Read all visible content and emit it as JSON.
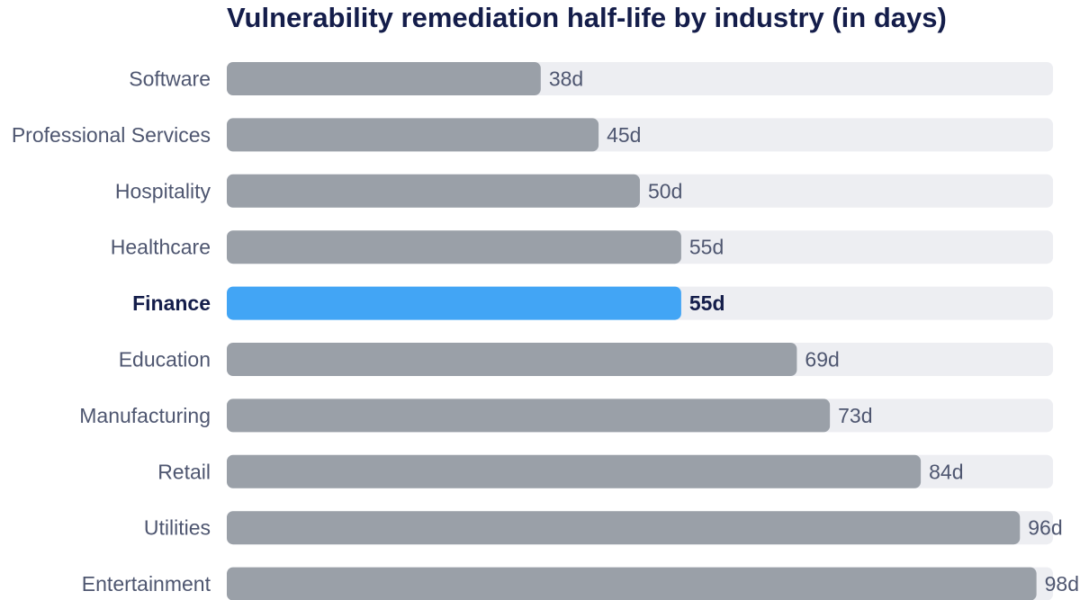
{
  "chart_data": {
    "type": "bar",
    "orientation": "horizontal",
    "title": "Vulnerability remediation half-life by industry (in days)",
    "categories": [
      "Software",
      "Professional Services",
      "Hospitality",
      "Healthcare",
      "Finance",
      "Education",
      "Manufacturing",
      "Retail",
      "Utilities",
      "Entertainment"
    ],
    "values": [
      38,
      45,
      50,
      55,
      55,
      69,
      73,
      84,
      96,
      98
    ],
    "value_labels": [
      "38d",
      "45d",
      "50d",
      "55d",
      "55d",
      "69d",
      "73d",
      "84d",
      "96d",
      "98d"
    ],
    "highlight": "Finance",
    "xlim": [
      0,
      100
    ],
    "grid": false,
    "legend": "none",
    "colors": {
      "bar": "#9aa0a8",
      "highlight_bar": "#42a5f5",
      "track": "#edeef2",
      "label": "#4e5670",
      "highlight_label": "#141d4a"
    }
  }
}
